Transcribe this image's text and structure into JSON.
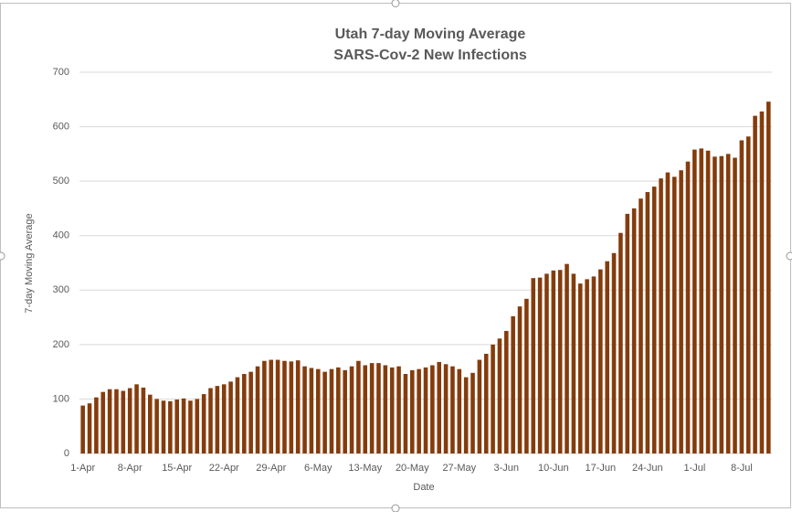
{
  "chart_data": {
    "type": "bar",
    "title": "Utah 7-day Moving Average",
    "subtitle": "SARS-Cov-2 New Infections",
    "x_label": "Date",
    "y_label": "7-day Moving Average",
    "color": "#843c0c",
    "grid": true,
    "ylim": [
      0,
      700
    ],
    "yticks": [
      0,
      100,
      200,
      300,
      400,
      500,
      600,
      700
    ],
    "categories": [
      "1-Apr",
      null,
      null,
      null,
      null,
      null,
      null,
      "8-Apr",
      null,
      null,
      null,
      null,
      null,
      null,
      "15-Apr",
      null,
      null,
      null,
      null,
      null,
      null,
      "22-Apr",
      null,
      null,
      null,
      null,
      null,
      null,
      "29-Apr",
      null,
      null,
      null,
      null,
      null,
      null,
      "6-May",
      null,
      null,
      null,
      null,
      null,
      null,
      "13-May",
      null,
      null,
      null,
      null,
      null,
      null,
      "20-May",
      null,
      null,
      null,
      null,
      null,
      null,
      "27-May",
      null,
      null,
      null,
      null,
      null,
      null,
      "3-Jun",
      null,
      null,
      null,
      null,
      null,
      null,
      "10-Jun",
      null,
      null,
      null,
      null,
      null,
      null,
      "17-Jun",
      null,
      null,
      null,
      null,
      null,
      null,
      "24-Jun",
      null,
      null,
      null,
      null,
      null,
      null,
      "1-Jul",
      null,
      null,
      null,
      null,
      null,
      null,
      "8-Jul",
      null,
      null,
      null,
      null
    ],
    "values": [
      88,
      92,
      103,
      113,
      118,
      118,
      115,
      120,
      127,
      121,
      108,
      100,
      97,
      96,
      99,
      101,
      97,
      100,
      109,
      120,
      124,
      127,
      132,
      140,
      146,
      150,
      160,
      170,
      172,
      172,
      170,
      169,
      171,
      160,
      157,
      155,
      150,
      155,
      158,
      153,
      160,
      170,
      162,
      166,
      166,
      162,
      158,
      160,
      146,
      153,
      155,
      158,
      162,
      168,
      164,
      160,
      155,
      140,
      148,
      172,
      183,
      200,
      211,
      225,
      252,
      270,
      284,
      322,
      323,
      330,
      336,
      337,
      348,
      330,
      312,
      320,
      325,
      338,
      353,
      368,
      405,
      440,
      450,
      468,
      480,
      490,
      505,
      516,
      508,
      520,
      536,
      558,
      560,
      556,
      545,
      546,
      550,
      543,
      575,
      582,
      620,
      628,
      646
    ]
  }
}
